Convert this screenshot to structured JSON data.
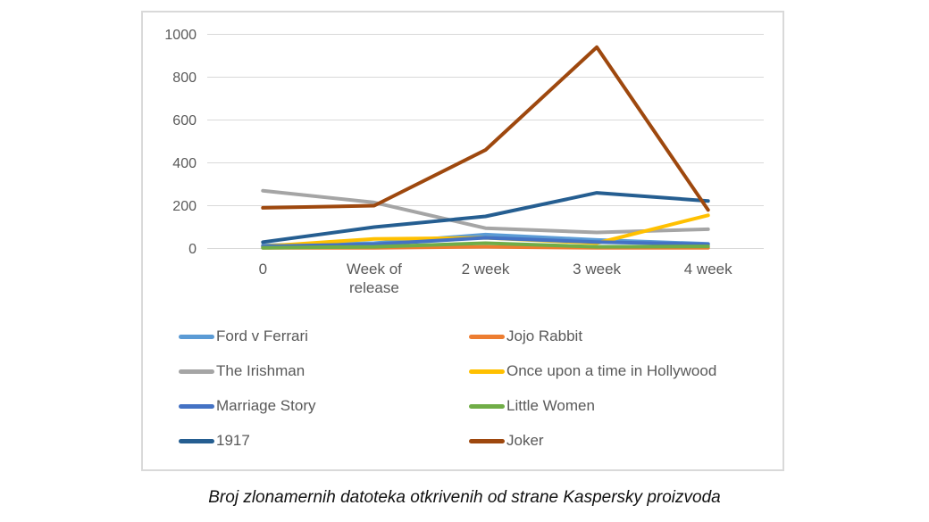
{
  "figure": {
    "caption": "Broj zlonamernih datoteka otkrivenih od strane Kaspersky proizvoda"
  },
  "chart_data": {
    "type": "line",
    "title": "",
    "xlabel": "",
    "ylabel": "",
    "categories": [
      "0",
      "Week of release",
      "2 week",
      "3 week",
      "4 week"
    ],
    "category_label_lines": [
      [
        "0"
      ],
      [
        "Week of",
        "release"
      ],
      [
        "2 week"
      ],
      [
        "3 week"
      ],
      [
        "4 week"
      ]
    ],
    "y_ticks": [
      0,
      200,
      400,
      600,
      800,
      1000
    ],
    "ylim": [
      0,
      1000
    ],
    "grid": "horizontal",
    "legend_position": "bottom",
    "legend_columns": 2,
    "axis_text_color": "#595959",
    "gridline_color": "#D9D9D9",
    "series": [
      {
        "name": "Ford v Ferrari",
        "color": "#5B9BD5",
        "values": [
          15,
          25,
          65,
          40,
          22
        ]
      },
      {
        "name": "Jojo Rabbit",
        "color": "#ED7D31",
        "values": [
          3,
          3,
          8,
          3,
          3
        ]
      },
      {
        "name": "The Irishman",
        "color": "#A5A5A5",
        "values": [
          270,
          215,
          95,
          75,
          90
        ]
      },
      {
        "name": "Once upon a time in Hollywood",
        "color": "#FFC000",
        "values": [
          10,
          45,
          50,
          25,
          155
        ]
      },
      {
        "name": "Marriage Story",
        "color": "#4472C4",
        "values": [
          10,
          20,
          50,
          30,
          20
        ]
      },
      {
        "name": "Little Women",
        "color": "#70AD47",
        "values": [
          3,
          8,
          25,
          8,
          10
        ]
      },
      {
        "name": "1917",
        "color": "#255E91",
        "values": [
          30,
          100,
          150,
          260,
          222
        ]
      },
      {
        "name": "Joker",
        "color": "#9E480E",
        "values": [
          190,
          200,
          460,
          940,
          180
        ]
      }
    ]
  }
}
